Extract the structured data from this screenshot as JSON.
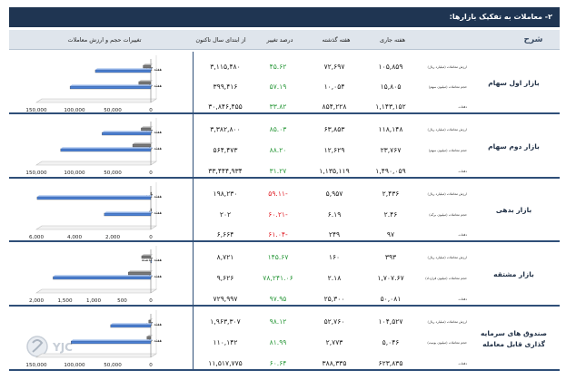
{
  "title": "۲- معاملات به تفکیک بازارها:",
  "headers": {
    "sharh": "شرح",
    "current_week": "هفته جاری",
    "last_week": "هفته گذشته",
    "change_pct": "درصد تغییر",
    "ytd": "از ابتدای سال تاکنون",
    "chart_title": "تغییرات حجم و ارزش معاملات"
  },
  "chart_labels": {
    "last_week": "هفته گذشته",
    "current_week": "هفته جاری"
  },
  "colors": {
    "current_week_bar": "#4a7fd4",
    "last_week_bar": "#777777",
    "positive": "#2e9a3e",
    "negative": "#e0242b"
  },
  "sections": [
    {
      "name": "بازار اول سهام",
      "rows": [
        {
          "label": "ارزش معاملات (میلیارد ریال)",
          "current": "۱۰۵,۸۵۹",
          "last": "۷۲,۶۹۷",
          "change": "۴۵.۶۲",
          "change_sign": "pos",
          "ytd": "۳,۱۱۵,۴۸۰"
        },
        {
          "label": "حجم معاملات (میلیون سهم)",
          "current": "۱۵,۸۰۵",
          "last": "۱۰,۰۵۴",
          "change": "۵۷.۱۹",
          "change_sign": "pos",
          "ytd": "۳۹۹,۴۱۶"
        },
        {
          "label": "دفعات",
          "current": "۱,۱۴۳,۱۵۲",
          "last": "۸۵۴,۲۲۸",
          "change": "۳۳.۸۲",
          "change_sign": "pos",
          "ytd": "۳۰,۸۴۶,۴۵۵"
        }
      ]
    },
    {
      "name": "بازار دوم سهام",
      "rows": [
        {
          "label": "ارزش معاملات (میلیارد ریال)",
          "current": "۱۱۸,۱۴۸",
          "last": "۶۳,۸۵۳",
          "change": "۸۵.۰۳",
          "change_sign": "pos",
          "ytd": "۳,۳۸۲,۸۰۰"
        },
        {
          "label": "حجم معاملات (میلیون سهم)",
          "current": "۲۳,۷۶۷",
          "last": "۱۲,۶۲۹",
          "change": "۸۸.۲۰",
          "change_sign": "pos",
          "ytd": "۵۶۴,۴۷۳"
        },
        {
          "label": "دفعات",
          "current": "۱,۴۹۰,۰۵۹",
          "last": "۱,۱۳۵,۱۱۹",
          "change": "۳۱.۲۷",
          "change_sign": "pos",
          "ytd": "۳۳,۴۴۴,۹۳۴"
        }
      ]
    },
    {
      "name": "بازار بدهی",
      "rows": [
        {
          "label": "ارزش معاملات (میلیارد ریال)",
          "current": "۲,۴۳۶",
          "last": "۵,۹۵۷",
          "change": "-۵۹.۱۱",
          "change_sign": "neg",
          "ytd": "۱۹۸,۲۳۰"
        },
        {
          "label": "حجم معاملات (میلیون برگه)",
          "current": "۲.۴۶",
          "last": "۶.۱۹",
          "change": "-۶۰.۲۱",
          "change_sign": "neg",
          "ytd": "۲۰۲"
        },
        {
          "label": "دفعات",
          "current": "۹۷",
          "last": "۲۴۹",
          "change": "-۶۱.۰۴",
          "change_sign": "neg",
          "ytd": "۶,۶۶۴"
        }
      ]
    },
    {
      "name": "بازار مشتقه",
      "rows": [
        {
          "label": "ارزش معاملات (میلیارد ریال)",
          "current": "۳۹۳",
          "last": "۱۶۰",
          "change": "۱۴۵.۶۷",
          "change_sign": "pos",
          "ytd": "۸,۷۲۱"
        },
        {
          "label": "حجم معاملات (میلیون قرارداد)",
          "current": "۱,۷۰۷.۶۷",
          "last": "۲.۱۸",
          "change": "۷۸,۲۴۱.۰۶",
          "change_sign": "pos",
          "ytd": "۹,۶۲۶"
        },
        {
          "label": "دفعات",
          "current": "۵۰,۰۸۱",
          "last": "۲۵,۳۰۰",
          "change": "۹۷.۹۵",
          "change_sign": "pos",
          "ytd": "۷۲۹,۹۹۷"
        }
      ]
    },
    {
      "name": "صندوق های سرمایه گذاری قابل معامله",
      "rows": [
        {
          "label": "ارزش معاملات (میلیارد ریال)",
          "current": "۱۰۴,۵۲۷",
          "last": "۵۲,۷۶۰",
          "change": "۹۸.۱۲",
          "change_sign": "pos",
          "ytd": "۱,۹۶۳,۳۰۷"
        },
        {
          "label": "حجم معاملات (میلیون یونیت)",
          "current": "۵,۰۴۶",
          "last": "۲,۷۷۳",
          "change": "۸۱.۹۹",
          "change_sign": "pos",
          "ytd": "۱۱۰,۱۴۲"
        },
        {
          "label": "دفعات",
          "current": "۶۲۳,۸۳۵",
          "last": "۳۸۸,۳۳۵",
          "change": "۶۰.۶۴",
          "change_sign": "pos",
          "ytd": "۱۱,۵۱۷,۷۷۵"
        }
      ]
    }
  ],
  "chart_data": [
    {
      "type": "bar",
      "orientation": "horizontal",
      "market": "بازار اول سهام",
      "categories": [
        "هفته گذشته",
        "هفته جاری"
      ],
      "series": [
        {
          "values": [
            10054,
            15805
          ]
        },
        {
          "values": [
            72697,
            105859
          ]
        }
      ],
      "xlim": [
        150000,
        0
      ],
      "xticks": [
        "150,000",
        "100,000",
        "50,000",
        "0"
      ]
    },
    {
      "type": "bar",
      "orientation": "horizontal",
      "market": "بازار دوم سهام",
      "categories": [
        "هفته گذشته",
        "هفته جاری"
      ],
      "series": [
        {
          "values": [
            12629,
            23767
          ]
        },
        {
          "values": [
            63853,
            118148
          ]
        }
      ],
      "xlim": [
        150000,
        0
      ],
      "xticks": [
        "150,000",
        "100,000",
        "50,000",
        "0"
      ]
    },
    {
      "type": "bar",
      "orientation": "horizontal",
      "market": "بازار بدهی",
      "categories": [
        "هفته گذشته",
        "هفته جاری"
      ],
      "series": [
        {
          "values": [
            6.19,
            2.46
          ]
        },
        {
          "values": [
            5957,
            2436
          ]
        }
      ],
      "xlim": [
        6000,
        0
      ],
      "xticks": [
        "6,000",
        "4,000",
        "2,000",
        "0"
      ]
    },
    {
      "type": "bar",
      "orientation": "horizontal",
      "market": "بازار مشتقه",
      "categories": [
        "هفته گذشته",
        "هفته جاری"
      ],
      "series": [
        {
          "values": [
            160,
            393
          ]
        },
        {
          "values": [
            2.18,
            1707.67
          ]
        }
      ],
      "xlim": [
        2000,
        0
      ],
      "xticks": [
        "2,000",
        "1,500",
        "1,000",
        "500",
        "0"
      ]
    },
    {
      "type": "bar",
      "orientation": "horizontal",
      "market": "صندوق های سرمایه گذاری قابل معامله",
      "categories": [
        "هفته گذشته",
        "هفته جاری"
      ],
      "series": [
        {
          "values": [
            2773,
            5046
          ]
        },
        {
          "values": [
            52760,
            104527
          ]
        }
      ],
      "xlim": [
        150000,
        0
      ],
      "xticks": [
        "150,000",
        "100,000",
        "50,000",
        "0"
      ]
    }
  ],
  "watermark": "YJC"
}
